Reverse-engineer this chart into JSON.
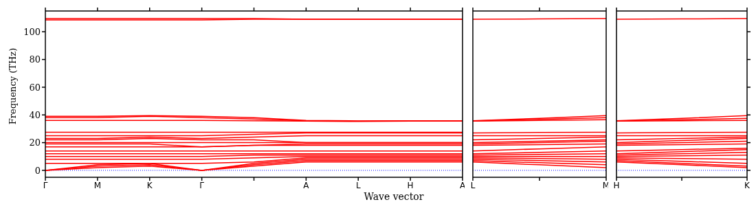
{
  "chart_data": [
    {
      "type": "line",
      "xlabel": "Wave vector",
      "ylabel": "Frequency (THz)",
      "categories": [
        "Γ",
        "M",
        "K",
        "Γ",
        null,
        "A",
        "L",
        "H",
        "A"
      ],
      "ylim": [
        -5,
        115
      ],
      "yticks": [
        0,
        20,
        40,
        60,
        80,
        100
      ],
      "ref_lines": [
        {
          "axis": "y",
          "value": 0,
          "color": "#0000ff",
          "line_style": "dotted"
        }
      ],
      "series": [
        {
          "color": "#ff0000",
          "values": [
            0,
            2,
            3,
            0,
            3,
            6,
            6,
            6,
            6
          ]
        },
        {
          "color": "#ff0000",
          "values": [
            0,
            3,
            4,
            0,
            4,
            7,
            7,
            7,
            7
          ]
        },
        {
          "color": "#ff0000",
          "values": [
            0,
            4,
            5,
            0,
            5,
            8,
            8,
            8,
            8
          ]
        },
        {
          "color": "#ff0000",
          "values": [
            5,
            5,
            5,
            5,
            6,
            9,
            9,
            9,
            9
          ]
        },
        {
          "color": "#ff0000",
          "values": [
            8,
            8,
            8,
            8,
            9,
            10,
            10,
            10,
            10
          ]
        },
        {
          "color": "#ff0000",
          "values": [
            10,
            10,
            10,
            10,
            11,
            11,
            11,
            11,
            11
          ]
        },
        {
          "color": "#ff0000",
          "values": [
            12,
            12,
            12,
            12,
            12,
            12,
            12,
            12,
            12
          ]
        },
        {
          "color": "#ff0000",
          "values": [
            14,
            14,
            14,
            14,
            14,
            14,
            14,
            14,
            14
          ]
        },
        {
          "color": "#ff0000",
          "values": [
            17,
            17,
            17,
            17,
            18,
            18,
            18,
            18,
            18
          ]
        },
        {
          "color": "#ff0000",
          "values": [
            19,
            19,
            19,
            17,
            18,
            19,
            19,
            19,
            19
          ]
        },
        {
          "color": "#ff0000",
          "values": [
            20,
            20,
            20,
            20,
            20,
            20,
            20,
            20,
            20
          ]
        },
        {
          "color": "#ff0000",
          "values": [
            22,
            22,
            23,
            22,
            22,
            20,
            20,
            20,
            20
          ]
        },
        {
          "color": "#ff0000",
          "values": [
            23,
            23,
            24,
            23,
            24,
            25,
            25,
            25,
            25
          ]
        },
        {
          "color": "#ff0000",
          "values": [
            25,
            25,
            25,
            25,
            26,
            27,
            27,
            27,
            27
          ]
        },
        {
          "color": "#ff0000",
          "values": [
            27.5,
            27.5,
            27.5,
            27.5,
            27.5,
            27.5,
            27.5,
            27.5,
            27.5
          ]
        },
        {
          "color": "#ff0000",
          "values": [
            36,
            36,
            36,
            36,
            35.8,
            35.5,
            35.3,
            35.5,
            35.5
          ]
        },
        {
          "color": "#ff0000",
          "values": [
            38,
            38,
            39,
            38,
            37,
            35.7,
            35.5,
            35.7,
            35.7
          ]
        },
        {
          "color": "#ff0000",
          "values": [
            39,
            39,
            39.5,
            39,
            38,
            36,
            35.7,
            35.8,
            35.8
          ]
        },
        {
          "color": "#ff0000",
          "values": [
            108.5,
            108.5,
            108.5,
            108.5,
            109,
            109,
            109,
            109,
            109
          ]
        },
        {
          "color": "#ff0000",
          "values": [
            109.5,
            109.5,
            109.5,
            109.5,
            109.5,
            109,
            109,
            109,
            109
          ]
        }
      ]
    },
    {
      "type": "line",
      "tick_labels": "x",
      "categories": [
        "L",
        null,
        "M"
      ],
      "ylim": [
        -5,
        115
      ],
      "yticks": [
        0,
        20,
        40,
        60,
        80,
        100
      ],
      "ref_lines": [
        {
          "axis": "y",
          "value": 0,
          "color": "#0000ff",
          "line_style": "dotted"
        }
      ],
      "series": [
        {
          "color": "#ff0000",
          "values": [
            6,
            4,
            2
          ]
        },
        {
          "color": "#ff0000",
          "values": [
            7,
            5.5,
            4
          ]
        },
        {
          "color": "#ff0000",
          "values": [
            8,
            7,
            6
          ]
        },
        {
          "color": "#ff0000",
          "values": [
            9,
            8.5,
            8
          ]
        },
        {
          "color": "#ff0000",
          "values": [
            10,
            10,
            10
          ]
        },
        {
          "color": "#ff0000",
          "values": [
            11,
            11.5,
            12
          ]
        },
        {
          "color": "#ff0000",
          "values": [
            12,
            13,
            14
          ]
        },
        {
          "color": "#ff0000",
          "values": [
            14,
            15.5,
            17
          ]
        },
        {
          "color": "#ff0000",
          "values": [
            18,
            18.5,
            19
          ]
        },
        {
          "color": "#ff0000",
          "values": [
            19,
            20,
            21
          ]
        },
        {
          "color": "#ff0000",
          "values": [
            20,
            21,
            22
          ]
        },
        {
          "color": "#ff0000",
          "values": [
            22,
            23,
            24
          ]
        },
        {
          "color": "#ff0000",
          "values": [
            25,
            25,
            25
          ]
        },
        {
          "color": "#ff0000",
          "values": [
            27,
            27.3,
            27.5
          ]
        },
        {
          "color": "#ff0000",
          "values": [
            35.5,
            36,
            36.5
          ]
        },
        {
          "color": "#ff0000",
          "values": [
            35.7,
            36.8,
            38
          ]
        },
        {
          "color": "#ff0000",
          "values": [
            35.8,
            37.5,
            39.5
          ]
        },
        {
          "color": "#ff0000",
          "values": [
            109,
            109.3,
            109.5
          ]
        }
      ]
    },
    {
      "type": "line",
      "tick_labels": "x",
      "categories": [
        "H",
        null,
        "K"
      ],
      "ylim": [
        -5,
        115
      ],
      "yticks": [
        0,
        20,
        40,
        60,
        80,
        100
      ],
      "ref_lines": [
        {
          "axis": "y",
          "value": 0,
          "color": "#0000ff",
          "line_style": "dotted"
        }
      ],
      "series": [
        {
          "color": "#ff0000",
          "values": [
            6,
            4,
            2
          ]
        },
        {
          "color": "#ff0000",
          "values": [
            7,
            5,
            3
          ]
        },
        {
          "color": "#ff0000",
          "values": [
            8,
            6.5,
            5
          ]
        },
        {
          "color": "#ff0000",
          "values": [
            9,
            8.5,
            8
          ]
        },
        {
          "color": "#ff0000",
          "values": [
            10,
            10.5,
            11
          ]
        },
        {
          "color": "#ff0000",
          "values": [
            11,
            12,
            13
          ]
        },
        {
          "color": "#ff0000",
          "values": [
            12,
            13.5,
            15
          ]
        },
        {
          "color": "#ff0000",
          "values": [
            14,
            15,
            16
          ]
        },
        {
          "color": "#ff0000",
          "values": [
            18,
            18.5,
            19
          ]
        },
        {
          "color": "#ff0000",
          "values": [
            19,
            20,
            21
          ]
        },
        {
          "color": "#ff0000",
          "values": [
            20,
            21.5,
            23
          ]
        },
        {
          "color": "#ff0000",
          "values": [
            22,
            23,
            24
          ]
        },
        {
          "color": "#ff0000",
          "values": [
            25,
            25,
            25
          ]
        },
        {
          "color": "#ff0000",
          "values": [
            27,
            27.3,
            27.5
          ]
        },
        {
          "color": "#ff0000",
          "values": [
            35.5,
            35.8,
            36
          ]
        },
        {
          "color": "#ff0000",
          "values": [
            35.7,
            36.5,
            37.5
          ]
        },
        {
          "color": "#ff0000",
          "values": [
            35.8,
            37.5,
            39.5
          ]
        },
        {
          "color": "#ff0000",
          "values": [
            109,
            109.3,
            109.5
          ]
        }
      ]
    }
  ]
}
